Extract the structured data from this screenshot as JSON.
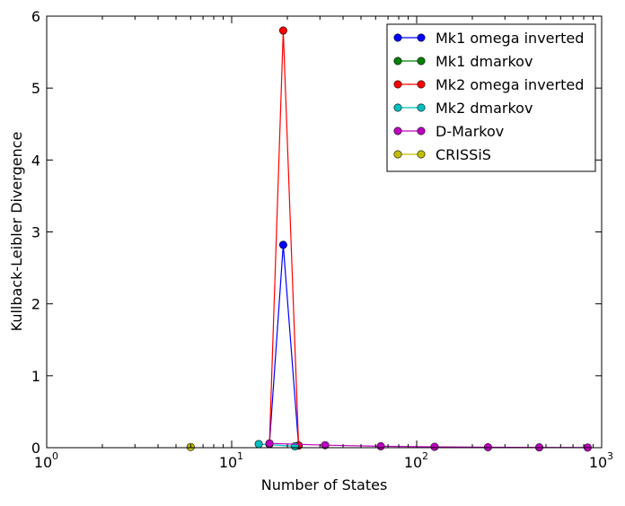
{
  "chart_data": {
    "type": "line",
    "title": "",
    "xlabel": "Number of States",
    "ylabel": "Kullback-Leibler Divergence",
    "xscale": "log",
    "xlim": [
      1,
      1000
    ],
    "ylim": [
      0,
      6
    ],
    "x_tick_labels": [
      {
        "value": 1,
        "base": "10",
        "exp": "0"
      },
      {
        "value": 10,
        "base": "10",
        "exp": "1"
      },
      {
        "value": 100,
        "base": "10",
        "exp": "2"
      },
      {
        "value": 1000,
        "base": "10",
        "exp": "3"
      }
    ],
    "y_ticks": [
      0,
      1,
      2,
      3,
      4,
      5,
      6
    ],
    "grid": false,
    "legend_position": "top-right",
    "series": [
      {
        "name": "Mk1 omega inverted",
        "color": "#0000ff",
        "points": [
          [
            16,
            0.05
          ],
          [
            19,
            2.82
          ],
          [
            23,
            0.03
          ]
        ]
      },
      {
        "name": "Mk1 dmarkov",
        "color": "#008000",
        "points": []
      },
      {
        "name": "Mk2 omega inverted",
        "color": "#ff0000",
        "points": [
          [
            16,
            0.05
          ],
          [
            19,
            5.8
          ],
          [
            23,
            0.03
          ]
        ]
      },
      {
        "name": "Mk2 dmarkov",
        "color": "#00bfbf",
        "points": [
          [
            14,
            0.05
          ],
          [
            22,
            0.02
          ]
        ]
      },
      {
        "name": "D-Markov",
        "color": "#bf00bf",
        "points": [
          [
            16,
            0.06
          ],
          [
            32,
            0.035
          ],
          [
            64,
            0.02
          ],
          [
            125,
            0.012
          ],
          [
            243,
            0.007
          ],
          [
            460,
            0.004
          ],
          [
            840,
            0.002
          ]
        ]
      },
      {
        "name": "CRISSiS",
        "color": "#bfbf00",
        "points": [
          [
            6,
            0.01
          ]
        ]
      }
    ]
  }
}
